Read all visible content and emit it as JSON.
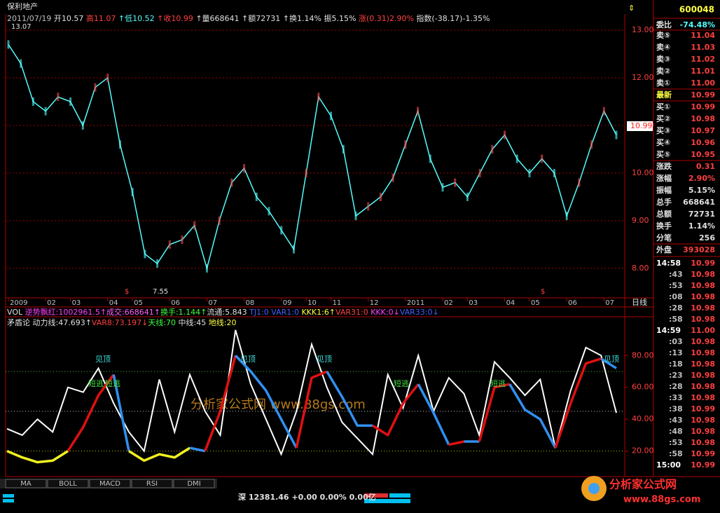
{
  "header": {
    "stock_name": "保利地产",
    "code": "600048",
    "info": [
      {
        "text": "2011/07/19",
        "color": "#c0c0c0"
      },
      {
        "text": " 开10.57",
        "color": "#e0e0e0"
      },
      {
        "text": " 高11.07",
        "color": "#ff4040"
      },
      {
        "text": " ↑低10.52",
        "color": "#54fcfc"
      },
      {
        "text": " ↑收10.99",
        "color": "#ff4040"
      },
      {
        "text": " ↑量668641",
        "color": "#e0e0e0"
      },
      {
        "text": " ↑额72731",
        "color": "#e0e0e0"
      },
      {
        "text": " ↑换1.14%",
        "color": "#e0e0e0"
      },
      {
        "text": " 振5.15%",
        "color": "#e0e0e0"
      },
      {
        "text": " 涨(0.31)2.90%",
        "color": "#ff4040"
      },
      {
        "text": " 指数(-38.17)-1.35%",
        "color": "#e0e0e0"
      }
    ]
  },
  "vol_line": [
    {
      "text": "VOL ",
      "color": "#e0e0e0"
    },
    {
      "text": "逆势飘红:1002961.5↑",
      "color": "#ff40ff"
    },
    {
      "text": "成交:668641↑",
      "color": "#ff60ff"
    },
    {
      "text": "换手:1.144↑",
      "color": "#40ff40"
    },
    {
      "text": "流通:5.843 ",
      "color": "#e0e0e0"
    },
    {
      "text": "TJ1:0 ",
      "color": "#4060ff"
    },
    {
      "text": "VAR1:0 ",
      "color": "#4060ff"
    },
    {
      "text": "KKK1:6↑",
      "color": "#ffff40"
    },
    {
      "text": "VAR31:0 ",
      "color": "#ff4040"
    },
    {
      "text": "KKK:0↓",
      "color": "#ff40ff"
    },
    {
      "text": "VAR33:0↓",
      "color": "#4060ff"
    }
  ],
  "indicator_line": [
    {
      "text": "矛盾论  ",
      "color": "#e0e0e0"
    },
    {
      "text": "动力线:47.693↑",
      "color": "#e0e0e0"
    },
    {
      "text": "VAR8:73.197↓",
      "color": "#ff4040"
    },
    {
      "text": "天线:70 ",
      "color": "#40ff40"
    },
    {
      "text": "中线:45 ",
      "color": "#e0e0e0"
    },
    {
      "text": "地线:20",
      "color": "#ffff40"
    }
  ],
  "chart_data": [
    {
      "type": "line",
      "color": "#54fcfc",
      "values": [
        12.7,
        12.3,
        11.5,
        11.3,
        11.6,
        11.5,
        11.0,
        11.8,
        12.0,
        10.6,
        9.6,
        8.3,
        8.1,
        8.5,
        8.6,
        8.9,
        8.0,
        9.0,
        9.8,
        10.1,
        9.5,
        9.2,
        8.8,
        8.4,
        10.0,
        11.6,
        11.2,
        10.5,
        9.1,
        9.3,
        9.5,
        9.9,
        10.6,
        11.3,
        10.3,
        9.7,
        9.8,
        9.5,
        10.0,
        10.5,
        10.8,
        10.3,
        10.0,
        10.3,
        10.0,
        9.1,
        9.8,
        10.6,
        11.3,
        10.8
      ],
      "categories": [
        "2009",
        null,
        null,
        "02",
        null,
        "03",
        null,
        null,
        "04",
        null,
        "05",
        null,
        null,
        "06",
        null,
        null,
        "07",
        null,
        null,
        "08",
        null,
        null,
        "09",
        null,
        "10",
        null,
        "11",
        null,
        null,
        "12",
        null,
        null,
        "2011",
        null,
        null,
        "02",
        null,
        "03",
        null,
        null,
        "04",
        null,
        "05",
        null,
        null,
        "06",
        null,
        null,
        "07",
        null
      ],
      "period_label": "日线",
      "ylim": [
        7.38,
        13.34
      ],
      "yticks": [
        {
          "value": 13,
          "label": "13.00"
        },
        {
          "value": 12,
          "label": "12.00"
        },
        {
          "value": 11,
          "label": "11.00"
        },
        {
          "value": 10,
          "label": "10.00"
        },
        {
          "value": 9,
          "label": "9.00"
        },
        {
          "value": 8,
          "label": "8.00"
        }
      ],
      "grid": true,
      "annotations": [
        "13.07",
        "7.55",
        "$",
        "$"
      ],
      "price_tag": "10.99"
    },
    {
      "type": "line",
      "ylim": [
        4,
        103
      ],
      "yticks": [
        {
          "value": 80,
          "label": "80.00"
        },
        {
          "value": 60,
          "label": "60.00"
        },
        {
          "value": 40,
          "label": "40.00"
        },
        {
          "value": 20,
          "label": "20.00"
        }
      ],
      "reference_lines": [
        {
          "value": 70,
          "color": "#40c040"
        },
        {
          "value": 45,
          "color": "#c0c0c0"
        },
        {
          "value": 20,
          "color": "#c0c000"
        }
      ],
      "lines": [
        {
          "color": "#ffffff",
          "values": [
            34,
            30,
            40,
            32,
            60,
            57,
            72,
            50,
            32,
            20,
            65,
            32,
            68,
            45,
            30,
            96,
            62,
            40,
            18,
            45,
            87,
            60,
            38,
            28,
            18,
            68,
            47,
            80,
            45,
            66,
            56,
            30,
            76,
            66,
            55,
            65,
            22,
            58,
            85,
            80,
            44
          ]
        },
        {
          "values": [
            20,
            16,
            13,
            14,
            20,
            35,
            55,
            68,
            20,
            14,
            18,
            16,
            22,
            20,
            45,
            80,
            70,
            58,
            40,
            22,
            66,
            70,
            54,
            36,
            36,
            30,
            50,
            62,
            44,
            24,
            26,
            26,
            60,
            62,
            46,
            40,
            22,
            50,
            75,
            78,
            72
          ],
          "colors": [
            "#f0f020",
            "#f0f020",
            "#f0f020",
            "#f0f020",
            "#e01010",
            "#e01010",
            "#e01010",
            "#3090f0",
            "#f0f020",
            "#f0f020",
            "#f0f020",
            "#f0f020",
            "#3090f0",
            "#e01010",
            "#e01010",
            "#3090f0",
            "#3090f0",
            "#3090f0",
            "#3090f0",
            "#e01010",
            "#e01010",
            "#3090f0",
            "#3090f0",
            "#3090f0",
            "#e01010",
            "#e01010",
            "#e01010",
            "#3090f0",
            "#3090f0",
            "#e01010",
            "#3090f0",
            "#e01010",
            "#e01010",
            "#3090f0",
            "#3090f0",
            "#3090f0",
            "#e01010",
            "#e01010",
            "#e01010",
            "#3090f0"
          ]
        }
      ],
      "annotations": [
        "见顶",
        "见顶",
        "见顶",
        "见顶",
        "短逃",
        "短逃",
        "短逃",
        "短逃"
      ],
      "watermark": "分析家公式网 www.88gs.com"
    }
  ],
  "quote": {
    "rows": [
      {
        "label": "委比",
        "value": "-74.48%",
        "color": "#54fcfc"
      },
      {
        "label": "卖⑤",
        "value": "11.04",
        "color": "#ff4040"
      },
      {
        "label": "卖④",
        "value": "11.03",
        "color": "#ff4040"
      },
      {
        "label": "卖③",
        "value": "11.02",
        "color": "#ff4040"
      },
      {
        "label": "卖②",
        "value": "11.01",
        "color": "#ff4040"
      },
      {
        "label": "卖①",
        "value": "11.00",
        "color": "#ff4040"
      },
      {
        "label": "最新",
        "value": "10.99",
        "color": "#ff4040"
      },
      {
        "label": "买①",
        "value": "10.99",
        "color": "#ff4040"
      },
      {
        "label": "买②",
        "value": "10.98",
        "color": "#ff4040"
      },
      {
        "label": "买③",
        "value": "10.97",
        "color": "#ff4040"
      },
      {
        "label": "买④",
        "value": "10.96",
        "color": "#ff4040"
      },
      {
        "label": "买⑤",
        "value": "10.95",
        "color": "#ff4040"
      },
      {
        "label": "涨跌",
        "value": "0.31",
        "color": "#ff4040"
      },
      {
        "label": "涨幅",
        "value": "2.90%",
        "color": "#ff4040"
      },
      {
        "label": "振幅",
        "value": "5.15%",
        "color": "#e0e0e0"
      },
      {
        "label": "总手",
        "value": "668641",
        "color": "#e0e0e0"
      },
      {
        "label": "总额",
        "value": "72731",
        "color": "#e0e0e0"
      },
      {
        "label": "换手",
        "value": "1.14%",
        "color": "#e0e0e0"
      },
      {
        "label": "分笔",
        "value": "256",
        "color": "#e0e0e0"
      },
      {
        "label": "外盘",
        "value": "393028",
        "color": "#ff4040"
      }
    ],
    "ticks": [
      [
        "14:58",
        "10.99"
      ],
      [
        ":43",
        "10.98"
      ],
      [
        ":53",
        "10.98"
      ],
      [
        ":08",
        "10.98"
      ],
      [
        ":28",
        "10.98"
      ],
      [
        ":58",
        "10.98"
      ],
      [
        "14:59",
        "11.00"
      ],
      [
        ":03",
        "10.98"
      ],
      [
        ":13",
        "10.98"
      ],
      [
        ":18",
        "10.98"
      ],
      [
        ":23",
        "10.98"
      ],
      [
        ":28",
        "10.98"
      ],
      [
        ":33",
        "10.98"
      ],
      [
        ":38",
        "10.99"
      ],
      [
        ":43",
        "10.98"
      ],
      [
        ":48",
        "10.98"
      ],
      [
        ":53",
        "10.98"
      ],
      [
        ":58",
        "10.99"
      ],
      [
        "15:00",
        "10.99"
      ]
    ]
  },
  "tabs": [
    "MA",
    "BOLL",
    "MACD",
    "RSI",
    "DMI"
  ],
  "status": "深  12381.46 +0.00 0.00% 0.00亿",
  "logo": {
    "name": "分析家公式网",
    "url": "www.88gs.com"
  }
}
